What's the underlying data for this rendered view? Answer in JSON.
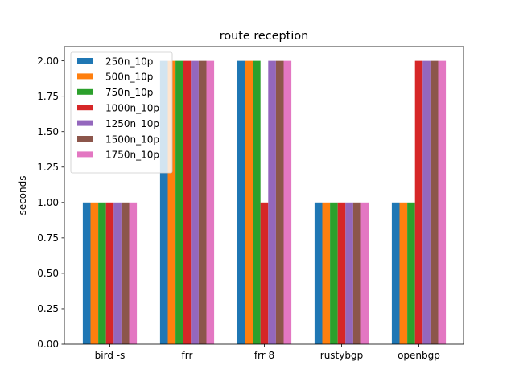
{
  "chart_data": {
    "type": "bar",
    "title": "route reception",
    "xlabel": "",
    "ylabel": "seconds",
    "ylim": [
      0,
      2.1
    ],
    "yticks": [
      "0.00",
      "0.25",
      "0.50",
      "0.75",
      "1.00",
      "1.25",
      "1.50",
      "1.75",
      "2.00"
    ],
    "categories": [
      "bird -s",
      "frr",
      "frr 8",
      "rustybgp",
      "openbgp"
    ],
    "legend_position": "top-left",
    "grid": false,
    "series": [
      {
        "name": "250n_10p",
        "color": "#1f77b4",
        "values": [
          1,
          2,
          2,
          1,
          1
        ]
      },
      {
        "name": "500n_10p",
        "color": "#ff7f0e",
        "values": [
          1,
          2,
          2,
          1,
          1
        ]
      },
      {
        "name": "750n_10p",
        "color": "#2ca02c",
        "values": [
          1,
          2,
          2,
          1,
          1
        ]
      },
      {
        "name": "1000n_10p",
        "color": "#d62728",
        "values": [
          1,
          2,
          1,
          1,
          2
        ]
      },
      {
        "name": "1250n_10p",
        "color": "#9467bd",
        "values": [
          1,
          2,
          2,
          1,
          2
        ]
      },
      {
        "name": "1500n_10p",
        "color": "#8c564b",
        "values": [
          1,
          2,
          2,
          1,
          2
        ]
      },
      {
        "name": "1750n_10p",
        "color": "#e377c2",
        "values": [
          1,
          2,
          2,
          1,
          2
        ]
      }
    ]
  }
}
